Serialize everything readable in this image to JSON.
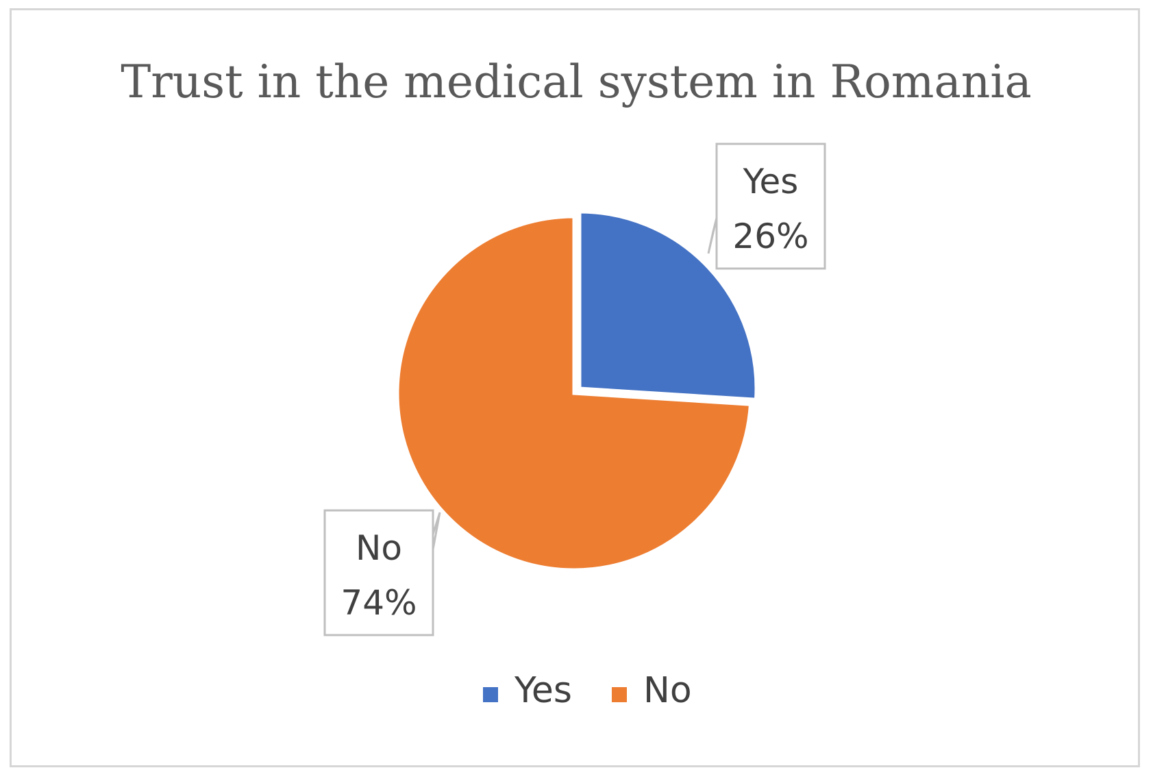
{
  "chart_data": {
    "type": "pie",
    "title": "Trust in the medical system in Romania",
    "slices": [
      {
        "label": "Yes",
        "value": 26,
        "value_label": "26%",
        "color": "#4472C4"
      },
      {
        "label": "No",
        "value": 74,
        "value_label": "74%",
        "color": "#ED7D31"
      }
    ],
    "legend": {
      "placement": "bottom",
      "entries": [
        "Yes",
        "No"
      ]
    },
    "data_labels": "callout"
  }
}
